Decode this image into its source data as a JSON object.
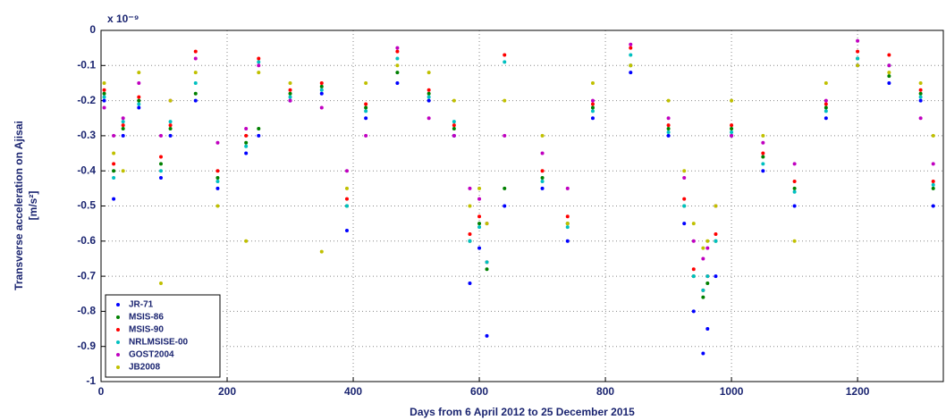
{
  "chart_data": {
    "type": "scatter",
    "xlabel": "Days from 6 April 2012 to 25 December 2015",
    "ylabel": [
      "Transverse acceleration on Ajisai",
      "[m/s²]"
    ],
    "axis_multiplier": "x 10⁻⁹",
    "xlim": [
      0,
      1336
    ],
    "xticks": [
      0,
      200,
      400,
      600,
      800,
      1000,
      1200
    ],
    "ylim": [
      -1,
      0
    ],
    "yticks": [
      0,
      -0.1,
      -0.2,
      -0.3,
      -0.4,
      -0.5,
      -0.6,
      -0.7,
      -0.8,
      -0.9,
      -1
    ],
    "grid": true,
    "legend": "lower left",
    "x": [
      5,
      20,
      35,
      60,
      95,
      110,
      150,
      185,
      230,
      250,
      300,
      350,
      390,
      420,
      470,
      520,
      560,
      585,
      600,
      612,
      640,
      700,
      740,
      780,
      840,
      900,
      925,
      940,
      955,
      962,
      975,
      1000,
      1050,
      1100,
      1150,
      1200,
      1250,
      1300,
      1320
    ],
    "series": [
      {
        "name": "JR-71",
        "color": "#0000ff",
        "values": [
          -0.2,
          -0.48,
          -0.3,
          -0.22,
          -0.42,
          -0.3,
          -0.2,
          -0.45,
          -0.35,
          -0.3,
          -0.2,
          -0.18,
          -0.57,
          -0.25,
          -0.15,
          -0.2,
          -0.3,
          -0.72,
          -0.62,
          -0.87,
          -0.5,
          -0.45,
          -0.6,
          -0.25,
          -0.12,
          -0.3,
          -0.55,
          -0.8,
          -0.92,
          -0.85,
          -0.7,
          -0.3,
          -0.4,
          -0.5,
          -0.25,
          -0.1,
          -0.15,
          -0.2,
          -0.5
        ]
      },
      {
        "name": "MSIS-86",
        "color": "#008000",
        "values": [
          -0.18,
          -0.4,
          -0.28,
          -0.2,
          -0.38,
          -0.28,
          -0.18,
          -0.42,
          -0.32,
          -0.28,
          -0.18,
          -0.16,
          -0.5,
          -0.22,
          -0.12,
          -0.18,
          -0.28,
          -0.6,
          -0.55,
          -0.68,
          -0.45,
          -0.42,
          -0.55,
          -0.22,
          -0.1,
          -0.28,
          -0.5,
          -0.7,
          -0.76,
          -0.72,
          -0.6,
          -0.28,
          -0.36,
          -0.45,
          -0.22,
          -0.08,
          -0.13,
          -0.18,
          -0.45
        ]
      },
      {
        "name": "MSIS-90",
        "color": "#ff0000",
        "values": [
          -0.17,
          -0.38,
          -0.27,
          -0.19,
          -0.36,
          -0.27,
          -0.06,
          -0.4,
          -0.3,
          -0.08,
          -0.17,
          -0.15,
          -0.48,
          -0.21,
          -0.06,
          -0.17,
          -0.27,
          -0.58,
          -0.53,
          -0.66,
          -0.07,
          -0.4,
          -0.53,
          -0.21,
          -0.05,
          -0.27,
          -0.48,
          -0.68,
          -0.74,
          -0.7,
          -0.58,
          -0.27,
          -0.35,
          -0.43,
          -0.21,
          -0.06,
          -0.07,
          -0.17,
          -0.43
        ]
      },
      {
        "name": "NRLMSISE-00",
        "color": "#00c0c0",
        "values": [
          -0.19,
          -0.42,
          -0.26,
          -0.21,
          -0.4,
          -0.26,
          -0.15,
          -0.43,
          -0.33,
          -0.09,
          -0.19,
          -0.17,
          -0.5,
          -0.23,
          -0.08,
          -0.19,
          -0.26,
          -0.6,
          -0.56,
          -0.66,
          -0.09,
          -0.43,
          -0.56,
          -0.23,
          -0.07,
          -0.29,
          -0.5,
          -0.7,
          -0.74,
          -0.7,
          -0.6,
          -0.29,
          -0.38,
          -0.46,
          -0.23,
          -0.08,
          -0.1,
          -0.19,
          -0.44
        ]
      },
      {
        "name": "GOST2004",
        "color": "#c000c0",
        "values": [
          -0.22,
          -0.3,
          -0.25,
          -0.15,
          -0.3,
          -0.2,
          -0.08,
          -0.32,
          -0.28,
          -0.1,
          -0.2,
          -0.22,
          -0.4,
          -0.3,
          -0.05,
          -0.25,
          -0.3,
          -0.45,
          -0.48,
          -0.55,
          -0.3,
          -0.35,
          -0.45,
          -0.2,
          -0.04,
          -0.25,
          -0.42,
          -0.6,
          -0.65,
          -0.62,
          -0.5,
          -0.3,
          -0.32,
          -0.38,
          -0.2,
          -0.03,
          -0.1,
          -0.25,
          -0.38
        ]
      },
      {
        "name": "JB2008",
        "color": "#c0c000",
        "values": [
          -0.15,
          -0.35,
          -0.4,
          -0.12,
          -0.72,
          -0.2,
          -0.12,
          -0.5,
          -0.6,
          -0.12,
          -0.15,
          -0.63,
          -0.45,
          -0.15,
          -0.1,
          -0.12,
          -0.2,
          -0.5,
          -0.45,
          -0.55,
          -0.2,
          -0.3,
          -0.55,
          -0.15,
          -0.1,
          -0.2,
          -0.4,
          -0.55,
          -0.62,
          -0.6,
          -0.5,
          -0.2,
          -0.3,
          -0.6,
          -0.15,
          -0.1,
          -0.12,
          -0.15,
          -0.3
        ]
      }
    ]
  }
}
